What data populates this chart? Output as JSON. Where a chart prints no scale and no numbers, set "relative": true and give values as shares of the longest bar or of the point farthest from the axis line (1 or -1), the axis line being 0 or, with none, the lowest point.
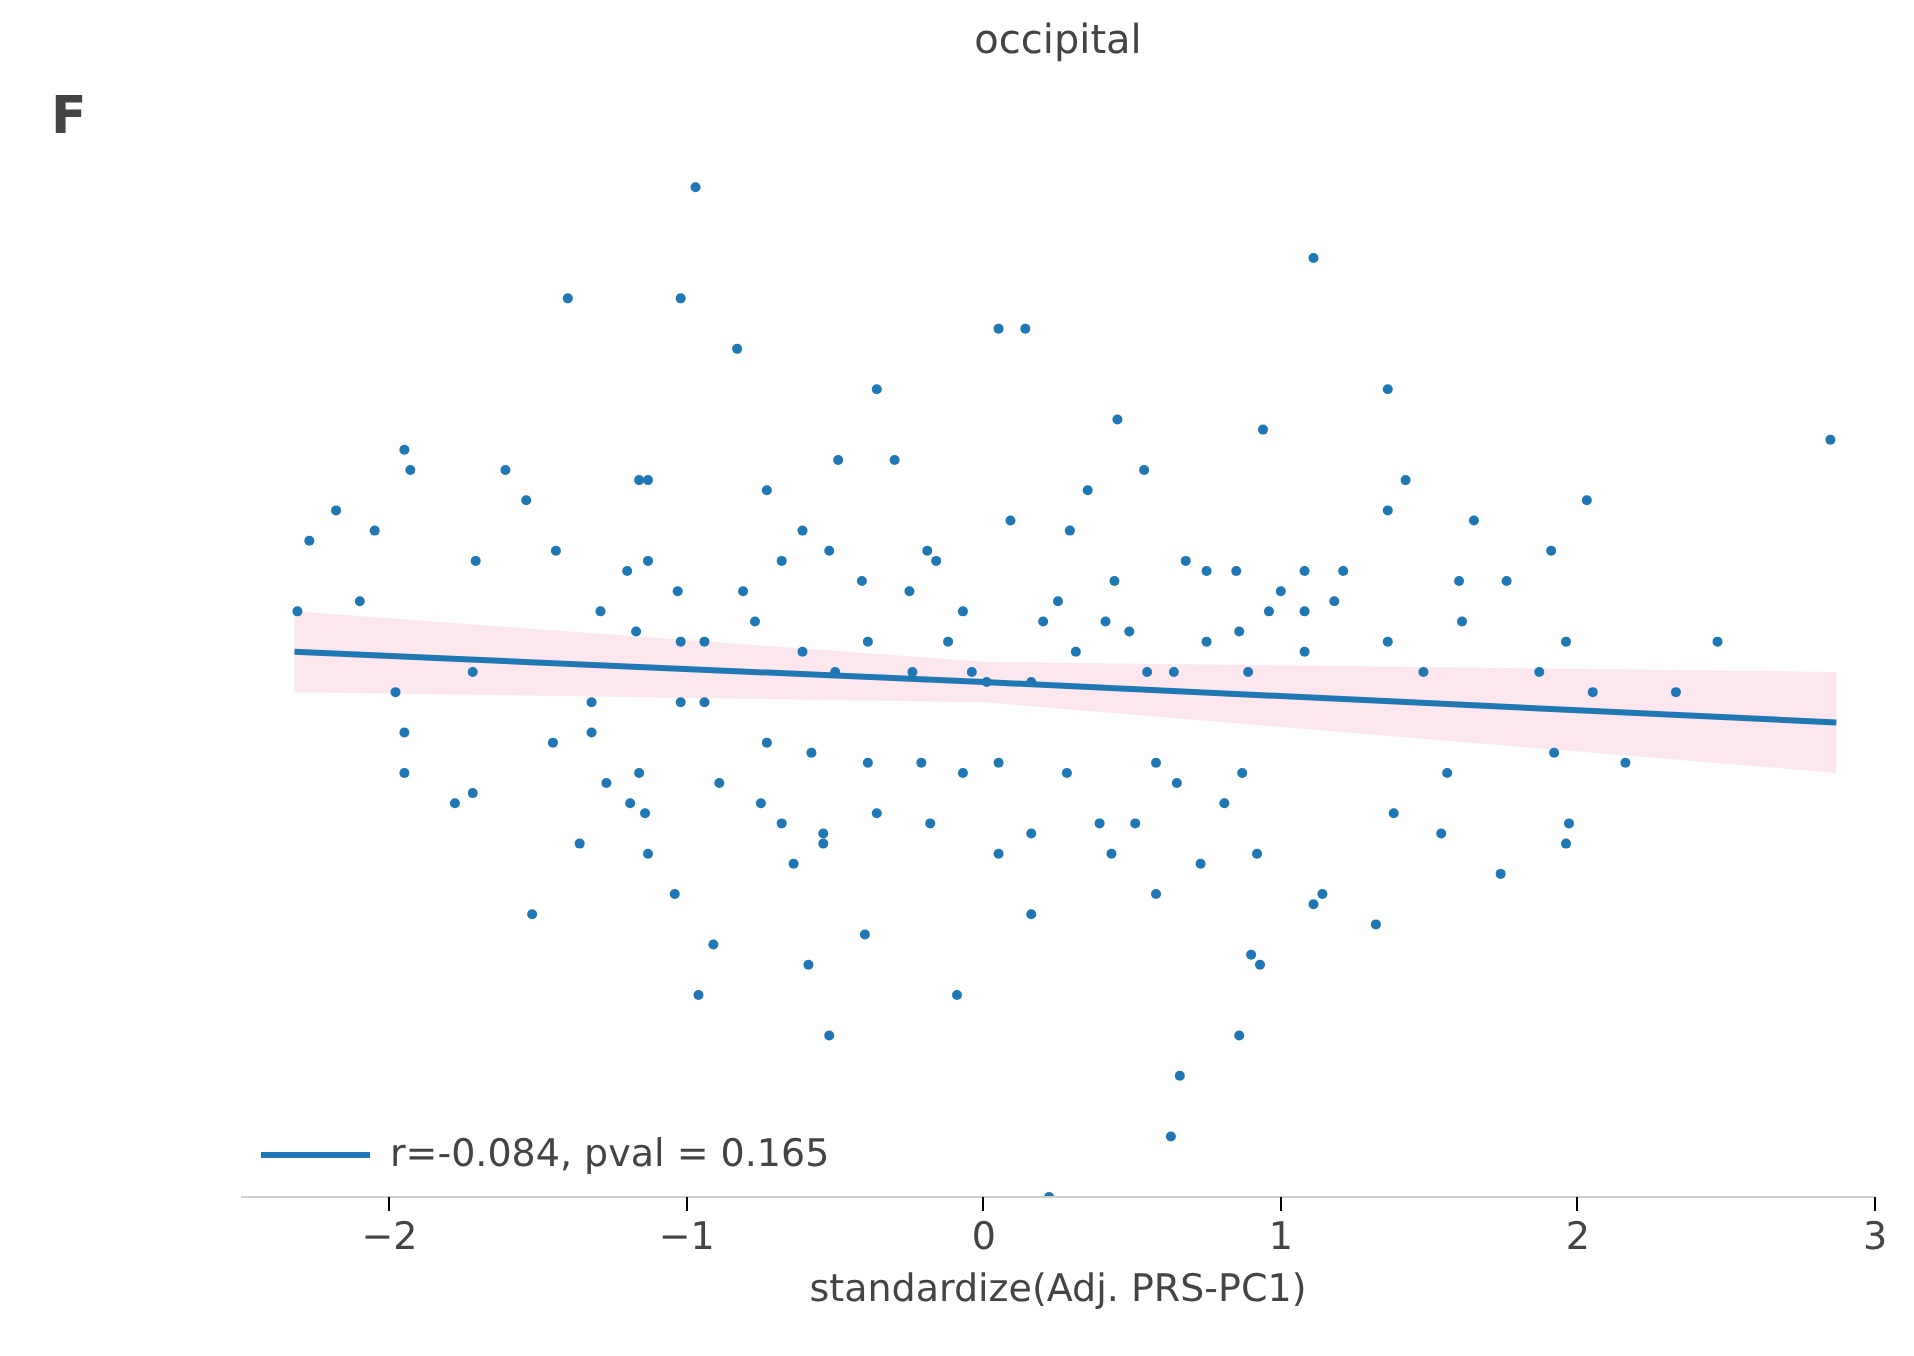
{
  "chart_data": {
    "type": "scatter",
    "title": "occipital",
    "xlabel": "standardize(Adj. PRS-PC1)",
    "annotations": [
      "F"
    ],
    "relative": true,
    "xlim": [
      -2.5,
      3.0
    ],
    "xticks": [
      {
        "value": -2,
        "label": "−2"
      },
      {
        "value": -1,
        "label": "−1"
      },
      0,
      1,
      2,
      3
    ],
    "grid": false,
    "legend": "bottom left",
    "series": [
      {
        "type": "scatter",
        "marker": "circle",
        "color": "#1f77b4",
        "x": [
          -0.97,
          1.11,
          -1.4,
          -1.02,
          -0.83,
          0.05,
          0.14,
          1.36,
          2.85,
          -0.36,
          0.45,
          0.94,
          -1.95,
          -1.93,
          -1.61,
          -1.54,
          -2.18,
          -2.27,
          -2.05,
          -1.16,
          -1.13,
          -0.73,
          -0.49,
          -0.3,
          0.54,
          0.35,
          0.09,
          0.29,
          -0.61,
          -0.68,
          -0.52,
          -0.19,
          -0.16,
          0.68,
          0.75,
          0.85,
          1.0,
          1.08,
          1.21,
          1.36,
          1.42,
          1.65,
          2.03,
          1.91,
          1.76,
          1.6,
          1.18,
          1.08,
          0.96,
          0.86,
          0.44,
          0.41,
          0.25,
          0.2,
          -0.07,
          -0.25,
          -0.41,
          -0.81,
          -1.03,
          -1.13,
          -1.2,
          -1.44,
          -1.71,
          -2.1,
          -2.31,
          -1.29,
          -1.17,
          -1.02,
          -0.94,
          -0.77,
          -0.61,
          -0.5,
          -0.39,
          -0.24,
          -0.12,
          -0.04,
          0.01,
          0.16,
          0.31,
          0.49,
          0.55,
          0.64,
          0.75,
          0.89,
          1.08,
          1.36,
          1.48,
          1.61,
          1.87,
          1.96,
          2.05,
          2.33,
          2.47,
          -1.98,
          -1.95,
          -1.95,
          -1.72,
          -1.78,
          -1.72,
          -1.45,
          -1.32,
          -1.32,
          -1.02,
          -0.94,
          -1.27,
          -1.19,
          -1.16,
          -1.13,
          -1.04,
          -0.96,
          -0.91,
          -0.89,
          -0.75,
          -0.68,
          -0.54,
          -0.54,
          -0.64,
          -0.73,
          -0.58,
          -0.39,
          -0.36,
          -0.21,
          -0.18,
          -0.07,
          0.05,
          0.05,
          0.16,
          0.28,
          0.43,
          0.39,
          0.51,
          0.58,
          0.65,
          0.73,
          0.81,
          0.87,
          0.92,
          1.11,
          0.9,
          0.93,
          1.32,
          1.38,
          1.54,
          1.56,
          1.74,
          1.92,
          1.96,
          1.97,
          2.16,
          -0.09,
          -0.52,
          -0.59,
          -0.4,
          0.16,
          0.58,
          0.66,
          0.86,
          1.14,
          0.63,
          0.22,
          -1.52,
          -1.14,
          -1.36
        ],
        "values": [
          1.0,
          0.93,
          0.89,
          0.89,
          0.84,
          0.86,
          0.86,
          0.8,
          0.75,
          0.8,
          0.77,
          0.76,
          0.74,
          0.72,
          0.72,
          0.69,
          0.68,
          0.65,
          0.66,
          0.71,
          0.71,
          0.7,
          0.73,
          0.73,
          0.72,
          0.7,
          0.67,
          0.66,
          0.66,
          0.63,
          0.64,
          0.64,
          0.63,
          0.63,
          0.62,
          0.62,
          0.6,
          0.62,
          0.62,
          0.68,
          0.71,
          0.67,
          0.69,
          0.64,
          0.61,
          0.61,
          0.59,
          0.58,
          0.58,
          0.56,
          0.61,
          0.57,
          0.59,
          0.57,
          0.58,
          0.6,
          0.61,
          0.6,
          0.6,
          0.63,
          0.62,
          0.64,
          0.63,
          0.59,
          0.58,
          0.58,
          0.56,
          0.55,
          0.55,
          0.57,
          0.54,
          0.52,
          0.55,
          0.52,
          0.55,
          0.52,
          0.51,
          0.51,
          0.54,
          0.56,
          0.52,
          0.52,
          0.55,
          0.52,
          0.54,
          0.55,
          0.52,
          0.57,
          0.52,
          0.55,
          0.5,
          0.5,
          0.55,
          0.5,
          0.46,
          0.42,
          0.4,
          0.39,
          0.52,
          0.45,
          0.46,
          0.49,
          0.49,
          0.49,
          0.41,
          0.39,
          0.42,
          0.34,
          0.3,
          0.2,
          0.25,
          0.41,
          0.39,
          0.37,
          0.36,
          0.35,
          0.33,
          0.45,
          0.44,
          0.43,
          0.38,
          0.43,
          0.37,
          0.42,
          0.43,
          0.34,
          0.36,
          0.42,
          0.34,
          0.37,
          0.37,
          0.43,
          0.41,
          0.33,
          0.39,
          0.42,
          0.34,
          0.29,
          0.24,
          0.23,
          0.27,
          0.38,
          0.36,
          0.42,
          0.32,
          0.44,
          0.35,
          0.37,
          0.43,
          0.2,
          0.16,
          0.23,
          0.26,
          0.28,
          0.3,
          0.12,
          0.16,
          0.3,
          0.06,
          0.0,
          0.28,
          0.38,
          0.35
        ]
      },
      {
        "type": "line",
        "name": "r=-0.084, pval = 0.165",
        "color": "#1f77b4",
        "x": [
          -2.32,
          0.0,
          2.87
        ],
        "values": [
          0.54,
          0.51,
          0.47
        ],
        "lower": [
          0.5,
          0.49,
          0.42
        ],
        "upper": [
          0.58,
          0.53,
          0.52
        ]
      }
    ]
  }
}
